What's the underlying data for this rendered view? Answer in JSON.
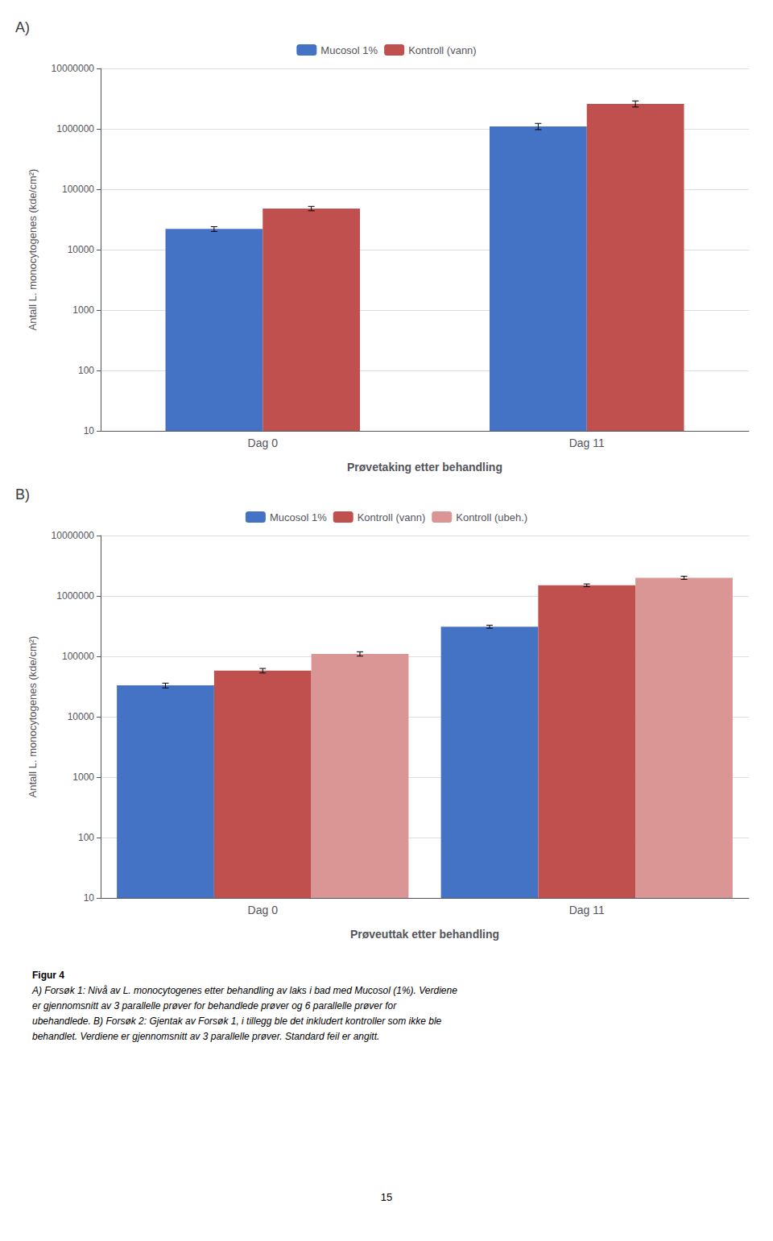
{
  "chart_data": [
    {
      "type": "bar",
      "title": "A)",
      "categories": [
        "Dag 0",
        "Dag 11"
      ],
      "series": [
        {
          "name": "Mucosol 1%",
          "color": "#4472C4",
          "values": [
            22000,
            1100000
          ],
          "errors": [
            2000,
            130000
          ]
        },
        {
          "name": "Kontroll (vann)",
          "color": "#C0504D",
          "values": [
            48000,
            2600000
          ],
          "errors": [
            4000,
            300000
          ]
        }
      ],
      "xlabel": "Prøvetaking etter behandling",
      "ylabel": "Antall L. monocytogenes (kde/cm²)",
      "ylim": [
        10,
        10000000
      ],
      "yticks": [
        10,
        100,
        1000,
        10000,
        100000,
        1000000,
        10000000
      ],
      "log": "y",
      "grid": true,
      "legend": "top"
    },
    {
      "type": "bar",
      "title": "B)",
      "categories": [
        "Dag 0",
        "Dag 11"
      ],
      "series": [
        {
          "name": "Mucosol 1%",
          "color": "#4472C4",
          "values": [
            33000,
            310000
          ],
          "errors": [
            3000,
            18000
          ]
        },
        {
          "name": "Kontroll (vann)",
          "color": "#C0504D",
          "values": [
            58000,
            1500000
          ],
          "errors": [
            5000,
            80000
          ]
        },
        {
          "name": "Kontroll (ubeh.)",
          "color": "#D99694",
          "values": [
            110000,
            2000000
          ],
          "errors": [
            9000,
            120000
          ]
        }
      ],
      "xlabel": "Prøveuttak etter behandling",
      "ylabel": "Antall L. monocytogenes (kde/cm²)",
      "ylim": [
        10,
        10000000
      ],
      "yticks": [
        10,
        100,
        1000,
        10000,
        100000,
        1000000,
        10000000
      ],
      "log": "y",
      "grid": true,
      "legend": "top"
    }
  ],
  "caption": [
    "Figur 4",
    "A) Forsøk 1: Nivå av L. monocytogenes etter behandling av laks i bad med Mucosol (1%). Verdiene",
    "er gjennomsnitt av 3 parallelle prøver for behandlede prøver og 6 parallelle prøver for",
    "ubehandlede. B) Forsøk 2: Gjentak av Forsøk 1, i tillegg ble det inkludert kontroller som ikke ble",
    "behandlet. Verdiene er gjennomsnitt av 3 parallelle prøver. Standard feil er angitt."
  ],
  "page_number": "15"
}
